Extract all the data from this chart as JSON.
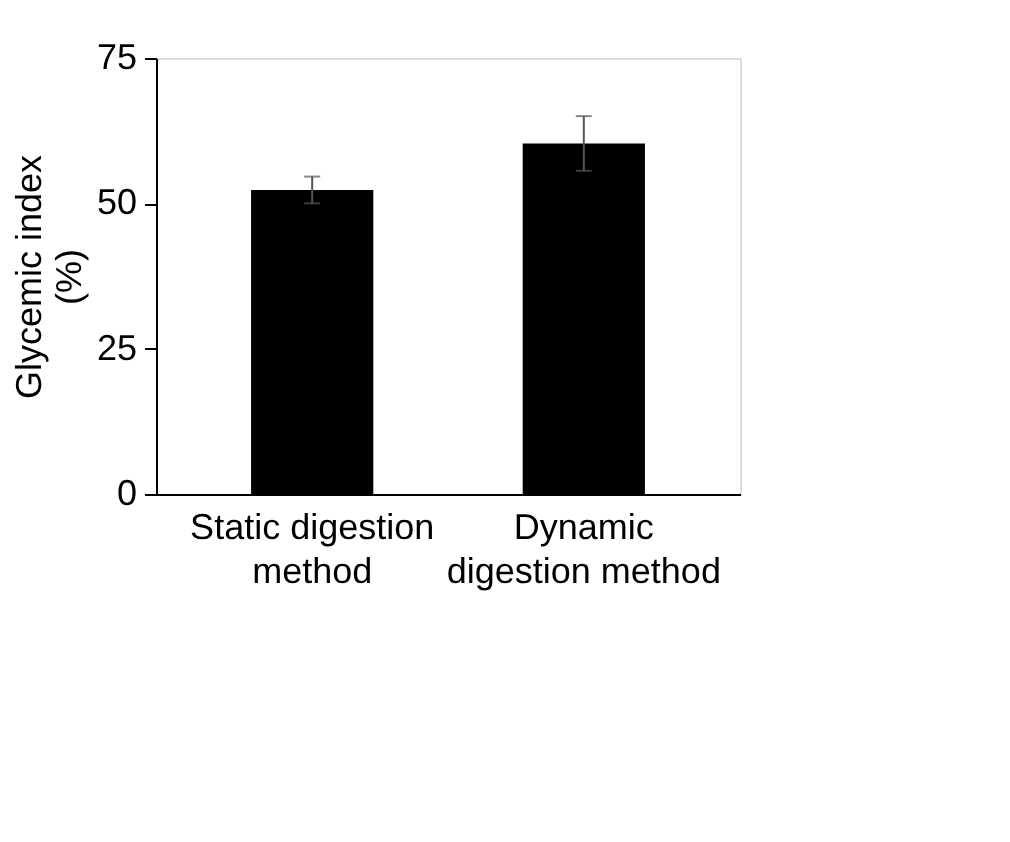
{
  "chart_data": {
    "type": "bar",
    "ylabel": "Glycemic index (%)",
    "categories": [
      "Static digestion method",
      "Dynamic digestion method"
    ],
    "values": [
      52.3,
      60.3
    ],
    "errors": [
      2.3,
      4.7
    ],
    "color": "#000000",
    "ylim": [
      0,
      75
    ],
    "yticks": [
      0,
      25,
      50,
      75
    ],
    "grid": false
  }
}
